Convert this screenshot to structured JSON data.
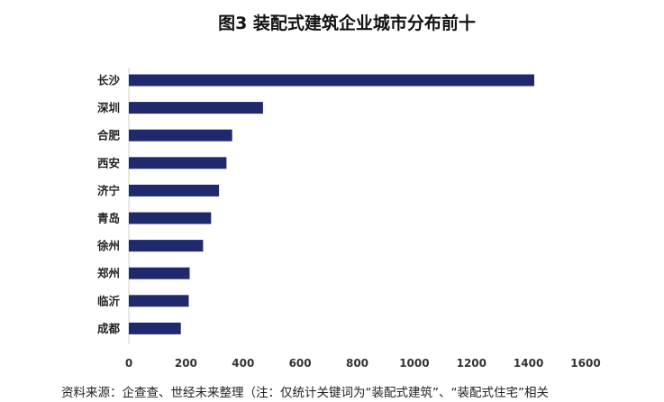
{
  "chart_data": {
    "type": "bar",
    "orientation": "horizontal",
    "title": "图3 装配式建筑企业城市分布前十",
    "categories": [
      "长沙",
      "深圳",
      "合肥",
      "西安",
      "济宁",
      "青岛",
      "徐州",
      "郑州",
      "临沂",
      "成都"
    ],
    "values": [
      1420,
      470,
      362,
      342,
      316,
      288,
      260,
      213,
      210,
      182
    ],
    "xlabel": "",
    "ylabel": "",
    "xlim": [
      0,
      1600
    ],
    "xticks": [
      0,
      200,
      400,
      600,
      800,
      1000,
      1200,
      1400,
      1600
    ],
    "grid": false,
    "legend": "none",
    "bar_color": "#1f2a6e",
    "source_note": "资料来源：企查查、世经未来整理（注：仅统计关键词为“装配式建筑”、“装配式住宅”相关"
  }
}
